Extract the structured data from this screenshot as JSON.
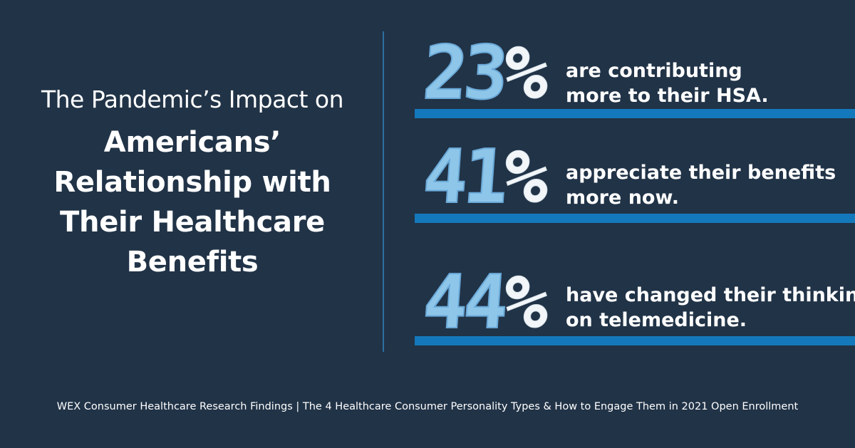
{
  "title": {
    "subtitle": "The Pandemic’s Impact on",
    "headline_lines": [
      "Americans’",
      "Relationship with",
      "Their Healthcare",
      "Benefits"
    ]
  },
  "stats": [
    {
      "number": "23",
      "percent_sign": "%",
      "text_lines": [
        "are contributing",
        "more to their HSA."
      ]
    },
    {
      "number": "41",
      "percent_sign": "%",
      "text_lines": [
        "appreciate their benefits",
        "more now."
      ]
    },
    {
      "number": "44",
      "percent_sign": "%",
      "text_lines": [
        "have changed their thinking",
        "on telemedicine."
      ]
    }
  ],
  "footer": "WEX Consumer Healthcare Research Findings | The 4 Healthcare Consumer Personality Types & How to Engage Them in 2021 Open Enrollment",
  "colors": {
    "background": "#213347",
    "bar": "#1479bc",
    "number_digits": "#8ec6ea",
    "divider": "#2f6f9f"
  }
}
